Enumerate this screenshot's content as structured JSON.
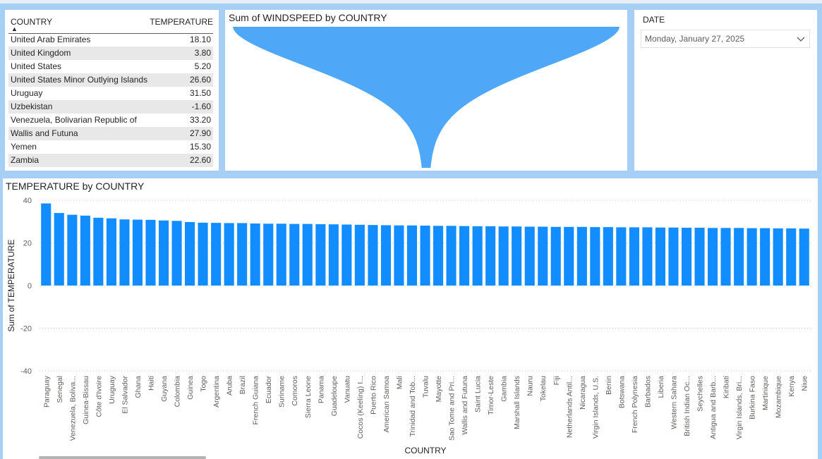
{
  "table": {
    "headers": {
      "country": "COUNTRY",
      "temperature": "TEMPERATURE"
    },
    "rows": [
      {
        "country": "United Arab Emirates",
        "temperature": "18.10"
      },
      {
        "country": "United Kingdom",
        "temperature": "3.80"
      },
      {
        "country": "United States",
        "temperature": "5.20"
      },
      {
        "country": "United States Minor Outlying Islands",
        "temperature": "26.60"
      },
      {
        "country": "Uruguay",
        "temperature": "31.50"
      },
      {
        "country": "Uzbekistan",
        "temperature": "-1.60"
      },
      {
        "country": "Venezuela, Bolivarian Republic of",
        "temperature": "33.20"
      },
      {
        "country": "Wallis and Futuna",
        "temperature": "27.90"
      },
      {
        "country": "Yemen",
        "temperature": "15.30"
      },
      {
        "country": "Zambia",
        "temperature": "22.60"
      }
    ]
  },
  "funnel": {
    "title": "Sum of WINDSPEED by COUNTRY"
  },
  "date_slicer": {
    "label": "DATE",
    "value": "Monday, January 27, 2025"
  },
  "colors": {
    "bar": "#118dff",
    "funnel": "#47a4f7",
    "background": "#a6cff5"
  },
  "chart_data": {
    "type": "bar",
    "title": "TEMPERATURE by COUNTRY",
    "xlabel": "COUNTRY",
    "ylabel": "Sum of TEMPERATURE",
    "ylim": [
      -40,
      40
    ],
    "yticks": [
      40,
      20,
      0,
      -20,
      -40
    ],
    "grid": true,
    "categories": [
      "Paraguay",
      "Senegal",
      "Venezuela, Bolivа...",
      "Guinea-Bissau",
      "Côte d'Ivoire",
      "Uruguay",
      "El Salvador",
      "Ghana",
      "Haiti",
      "Guyana",
      "Colombia",
      "Guinea",
      "Togo",
      "Argentina",
      "Aruba",
      "Brazil",
      "French Guiana",
      "Ecuador",
      "Suriname",
      "Comoros",
      "Sierra Leone",
      "Panama",
      "Guadeloupe",
      "Vanuatu",
      "Cocos (Keeling) I...",
      "Puerto Rico",
      "American Samoa",
      "Mali",
      "Trinidad and Tob...",
      "Tuvalu",
      "Mayotte",
      "Sao Tome and Pri...",
      "Wallis and Futuna",
      "Saint Lucia",
      "Timor-Leste",
      "Gambia",
      "Marshall Islands",
      "Nauru",
      "Tokelau",
      "Fiji",
      "Netherlands Antil...",
      "Nicaragua",
      "Virgin Islands, U.S.",
      "Benin",
      "Botswana",
      "French Polynesia",
      "Barbados",
      "Liberia",
      "Western Sahara",
      "British Indian Oc...",
      "Seychelles",
      "Antigua and Barb...",
      "Kiribati",
      "Virgin Islands, Bri...",
      "Burkina Faso",
      "Martinique",
      "Mozambique",
      "Kenya",
      "Niue"
    ],
    "values": [
      38.5,
      34.0,
      33.2,
      32.8,
      31.8,
      31.5,
      31.0,
      30.9,
      30.8,
      30.5,
      30.3,
      29.8,
      29.5,
      29.4,
      29.3,
      29.3,
      29.1,
      29.0,
      29.0,
      28.9,
      28.9,
      28.8,
      28.7,
      28.6,
      28.5,
      28.4,
      28.3,
      28.2,
      28.2,
      28.1,
      28.0,
      28.0,
      27.9,
      27.8,
      27.8,
      27.7,
      27.7,
      27.6,
      27.6,
      27.5,
      27.5,
      27.5,
      27.4,
      27.4,
      27.3,
      27.3,
      27.3,
      27.2,
      27.2,
      27.1,
      27.1,
      27.0,
      27.0,
      27.0,
      26.9,
      26.9,
      26.8,
      26.8,
      26.7
    ]
  }
}
